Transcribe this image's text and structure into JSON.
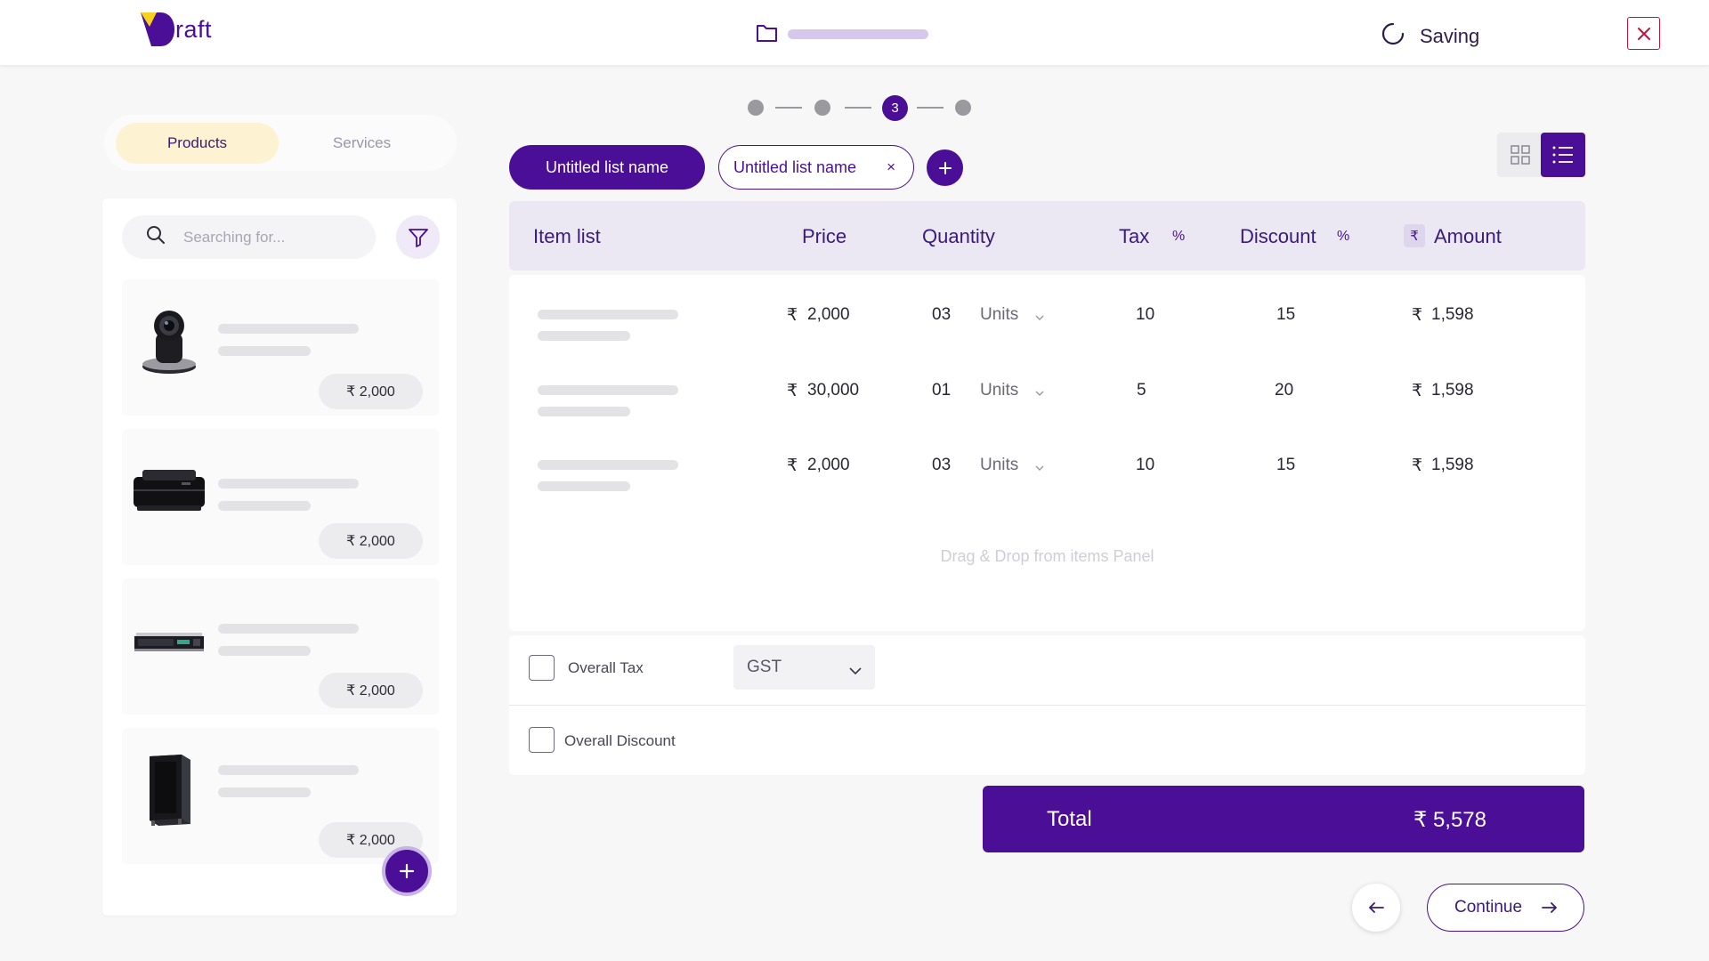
{
  "header": {
    "logo_text": "raft",
    "status_text": "Saving"
  },
  "colors": {
    "brand": "#4a0f96",
    "accent_yellow": "#fdf3d3",
    "close": "#c0143c"
  },
  "tabs": {
    "products": "Products",
    "services": "Services"
  },
  "search": {
    "placeholder": "Searching for..."
  },
  "products": [
    {
      "icon": "webcam",
      "price": "₹ 2,000"
    },
    {
      "icon": "printer",
      "price": "₹ 2,000"
    },
    {
      "icon": "server",
      "price": "₹ 2,000"
    },
    {
      "icon": "rack",
      "price": "₹ 2,000"
    }
  ],
  "stepper": {
    "active_step": "3"
  },
  "lists": {
    "active": "Untitled list name",
    "second": "Untitled list name",
    "close_glyph": "×"
  },
  "table": {
    "headers": {
      "item": "Item list",
      "price": "Price",
      "quantity": "Quantity",
      "tax": "Tax",
      "tax_unit": "%",
      "discount": "Discount",
      "discount_unit": "%",
      "amount_symbol": "₹",
      "amount": "Amount"
    },
    "rows": [
      {
        "price_symbol": "₹",
        "price": "2,000",
        "qty": "03",
        "unit": "Units",
        "tax": "10",
        "discount": "15",
        "amount_symbol": "₹",
        "amount": "1,598"
      },
      {
        "price_symbol": "₹",
        "price": "30,000",
        "qty": "01",
        "unit": "Units",
        "tax": "5",
        "discount": "20",
        "amount_symbol": "₹",
        "amount": "1,598"
      },
      {
        "price_symbol": "₹",
        "price": "2,000",
        "qty": "03",
        "unit": "Units",
        "tax": "10",
        "discount": "15",
        "amount_symbol": "₹",
        "amount": "1,598"
      }
    ],
    "dropzone": "Drag & Drop from items Panel"
  },
  "overall": {
    "tax_label": "Overall Tax",
    "tax_select": "GST",
    "discount_label": "Overall Discount"
  },
  "total": {
    "label": "Total",
    "value": "₹  5,578"
  },
  "nav": {
    "continue": "Continue"
  }
}
